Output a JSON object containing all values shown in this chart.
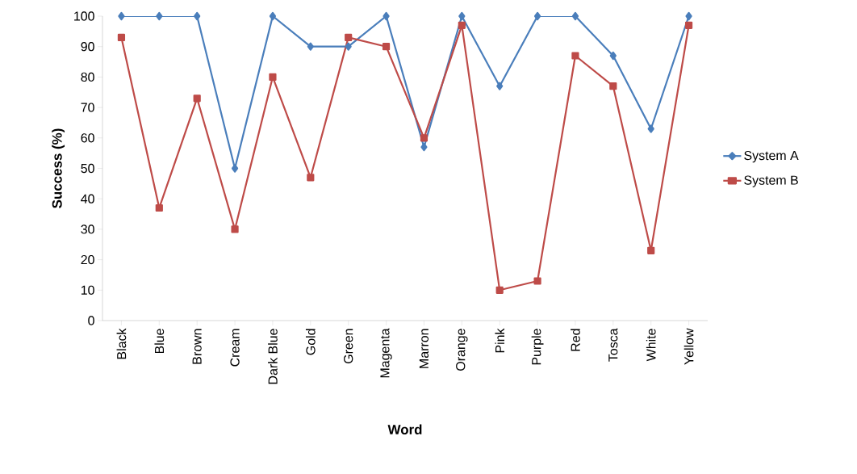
{
  "chart_data": {
    "type": "line",
    "xlabel": "Word",
    "ylabel": "Success (%)",
    "categories": [
      "Black",
      "Blue",
      "Brown",
      "Cream",
      "Dark Blue",
      "Gold",
      "Green",
      "Magenta",
      "Marron",
      "Orange",
      "Pink",
      "Purple",
      "Red",
      "Tosca",
      "White",
      "Yellow"
    ],
    "series": [
      {
        "name": "System A",
        "color": "#4a7ebb",
        "marker": "diamond",
        "values": [
          100,
          100,
          100,
          50,
          100,
          90,
          90,
          100,
          57,
          100,
          77,
          100,
          100,
          87,
          63,
          100
        ]
      },
      {
        "name": "System B",
        "color": "#be4b48",
        "marker": "square",
        "values": [
          93,
          37,
          73,
          30,
          80,
          47,
          93,
          90,
          60,
          97,
          10,
          13,
          87,
          77,
          23,
          97
        ]
      }
    ],
    "ylim": [
      0,
      100
    ],
    "yticks": [
      0,
      10,
      20,
      30,
      40,
      50,
      60,
      70,
      80,
      90,
      100
    ],
    "grid": false,
    "legend": "right",
    "line_style": "solid"
  }
}
